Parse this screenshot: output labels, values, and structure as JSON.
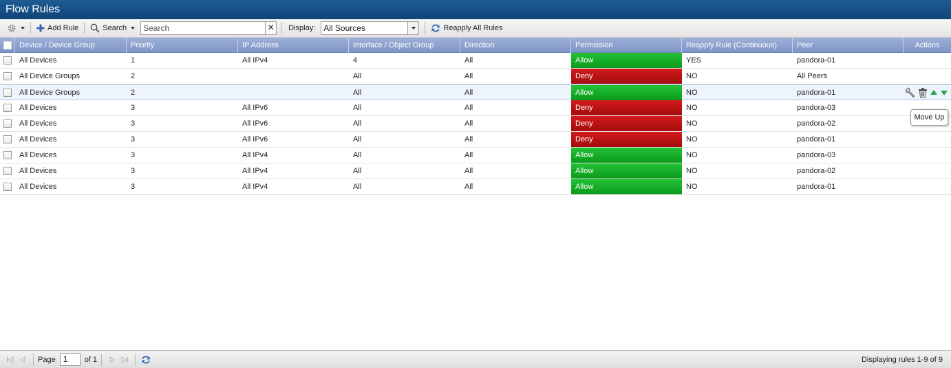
{
  "window": {
    "title": "Flow Rules"
  },
  "toolbar": {
    "settings_icon": "gear-icon",
    "add_rule_label": "Add Rule",
    "search_label": "Search",
    "search_placeholder": "Search",
    "display_label": "Display:",
    "display_value": "All Sources",
    "reapply_label": "Reapply All Rules"
  },
  "columns": [
    "Device / Device Group",
    "Priority",
    "IP Address",
    "Interface / Object Group",
    "Direction",
    "Permission",
    "Reapply Rule (Continuous)",
    "Peer",
    "Actions"
  ],
  "rows": [
    {
      "device": "All Devices",
      "priority": "1",
      "ip": "All IPv4",
      "interface": "4",
      "direction": "All",
      "permission": "Allow",
      "reapply": "YES",
      "peer": "pandora-01"
    },
    {
      "device": "All Device Groups",
      "priority": "2",
      "ip": "",
      "interface": "All",
      "direction": "All",
      "permission": "Deny",
      "reapply": "NO",
      "peer": "All Peers"
    },
    {
      "device": "All Device Groups",
      "priority": "2",
      "ip": "",
      "interface": "All",
      "direction": "All",
      "permission": "Allow",
      "reapply": "NO",
      "peer": "pandora-01"
    },
    {
      "device": "All Devices",
      "priority": "3",
      "ip": "All IPv6",
      "interface": "All",
      "direction": "All",
      "permission": "Deny",
      "reapply": "NO",
      "peer": "pandora-03"
    },
    {
      "device": "All Devices",
      "priority": "3",
      "ip": "All IPv6",
      "interface": "All",
      "direction": "All",
      "permission": "Deny",
      "reapply": "NO",
      "peer": "pandora-02"
    },
    {
      "device": "All Devices",
      "priority": "3",
      "ip": "All IPv6",
      "interface": "All",
      "direction": "All",
      "permission": "Deny",
      "reapply": "NO",
      "peer": "pandora-01"
    },
    {
      "device": "All Devices",
      "priority": "3",
      "ip": "All IPv4",
      "interface": "All",
      "direction": "All",
      "permission": "Allow",
      "reapply": "NO",
      "peer": "pandora-03"
    },
    {
      "device": "All Devices",
      "priority": "3",
      "ip": "All IPv4",
      "interface": "All",
      "direction": "All",
      "permission": "Allow",
      "reapply": "NO",
      "peer": "pandora-02"
    },
    {
      "device": "All Devices",
      "priority": "3",
      "ip": "All IPv4",
      "interface": "All",
      "direction": "All",
      "permission": "Allow",
      "reapply": "NO",
      "peer": "pandora-01"
    }
  ],
  "row_actions": [
    "edit-icon",
    "delete-icon",
    "move-up-icon",
    "move-down-icon"
  ],
  "tooltip": "Move Up",
  "pager": {
    "page_label": "Page",
    "page_value": "1",
    "of_label": "of 1",
    "status": "Displaying rules 1-9 of 9"
  },
  "colors": {
    "allow": "#0c9a1e",
    "deny": "#a30c0c",
    "header": "#8a9fce",
    "title_bar": "#0f4579"
  }
}
